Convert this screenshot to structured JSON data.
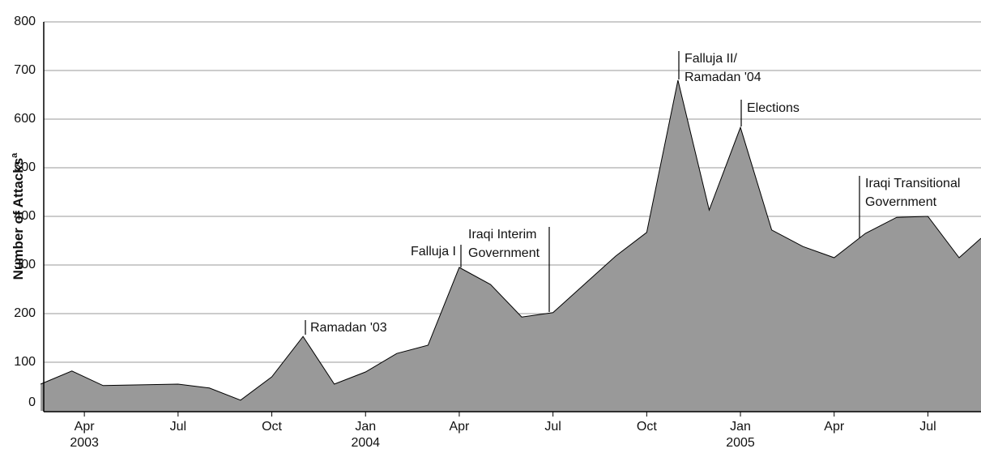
{
  "chart_data": {
    "type": "area",
    "ylabel": "Number of Attacks",
    "ylabel_note": "a",
    "x": [
      -1.4,
      -0.4,
      0.6,
      3,
      4,
      5,
      6,
      7,
      8,
      9,
      10,
      11,
      12,
      13,
      14,
      15,
      16,
      17,
      18,
      19,
      20,
      21,
      22,
      23,
      24,
      25,
      26,
      27,
      28,
      28.7
    ],
    "values": [
      55,
      82,
      52,
      55,
      47,
      22,
      70,
      153,
      55,
      80,
      118,
      135,
      295,
      260,
      193,
      202,
      260,
      318,
      367,
      680,
      413,
      583,
      372,
      338,
      315,
      365,
      398,
      400,
      315,
      355
    ],
    "color": "#999999",
    "xlim": [
      -1.3,
      28.7
    ],
    "ylim": [
      0,
      800
    ],
    "yticks": [
      0,
      100,
      200,
      300,
      400,
      500,
      600,
      700,
      800
    ],
    "xticks": [
      {
        "value": 0,
        "label": "Apr",
        "year": "2003"
      },
      {
        "value": 3,
        "label": "Jul"
      },
      {
        "value": 6,
        "label": "Oct"
      },
      {
        "value": 9,
        "label": "Jan",
        "year": "2004"
      },
      {
        "value": 12,
        "label": "Apr"
      },
      {
        "value": 15,
        "label": "Jul"
      },
      {
        "value": 18,
        "label": "Oct"
      },
      {
        "value": 21,
        "label": "Jan",
        "year": "2005"
      },
      {
        "value": 24,
        "label": "Apr"
      },
      {
        "value": 27,
        "label": "Jul"
      }
    ],
    "grid": true,
    "annotations": [
      [
        "Ramadan '03"
      ],
      [
        "Falluja I"
      ],
      [
        "Iraqi Interim",
        "Government"
      ],
      [
        "Falluja II/",
        "Ramadan '04"
      ],
      [
        "Elections"
      ],
      [
        "Iraqi Transitional",
        "Government"
      ]
    ]
  }
}
